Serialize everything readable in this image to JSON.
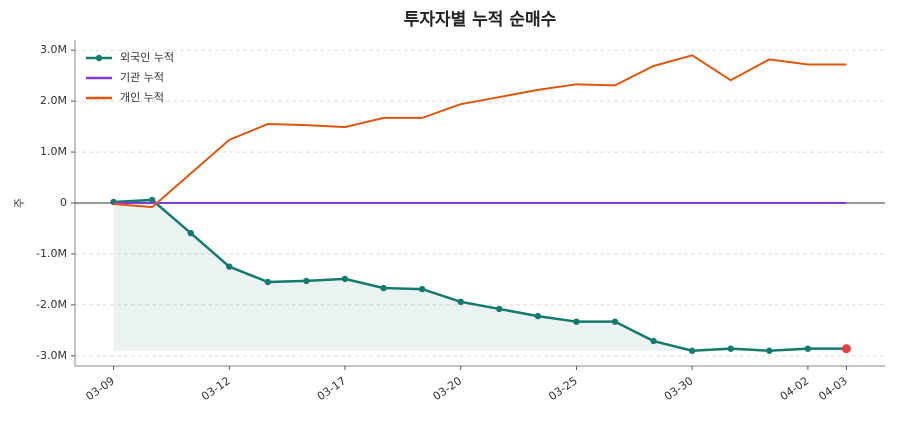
{
  "chart_data": {
    "type": "line",
    "title": "투자자별 누적 순매수",
    "ylabel": "주",
    "categories": [
      "03-09",
      null,
      null,
      "03-12",
      null,
      null,
      "03-17",
      null,
      null,
      "03-20",
      null,
      null,
      "03-25",
      null,
      null,
      "03-30",
      null,
      null,
      "04-02",
      "04-03"
    ],
    "series": [
      {
        "name": "외국인 누적",
        "color": "#147a6e",
        "markers": true,
        "fill": true,
        "last_point_color": "#e5413e",
        "values": [
          20000,
          60000,
          -590000,
          -1250000,
          -1550000,
          -1530000,
          -1490000,
          -1670000,
          -1690000,
          -1940000,
          -2080000,
          -2220000,
          -2330000,
          -2330000,
          -2710000,
          -2900000,
          -2860000,
          -2900000,
          -2860000,
          -2860000
        ]
      },
      {
        "name": "기관 누적",
        "color": "#7e3fd9",
        "markers": false,
        "values": [
          0,
          0,
          0,
          0,
          0,
          0,
          0,
          0,
          0,
          0,
          0,
          0,
          0,
          0,
          0,
          0,
          0,
          0,
          0,
          0
        ]
      },
      {
        "name": "개인 누적",
        "color": "#e0560f",
        "markers": false,
        "values": [
          -20000,
          -80000,
          580000,
          1240000,
          1550000,
          1530000,
          1490000,
          1670000,
          1670000,
          1940000,
          2080000,
          2220000,
          2330000,
          2310000,
          2690000,
          2900000,
          2410000,
          2820000,
          2720000,
          2720000
        ]
      }
    ],
    "ylim": [
      -3200000,
      3200000
    ],
    "yticks": [
      {
        "value": 3000000,
        "label": "3.0M"
      },
      {
        "value": 2000000,
        "label": "2.0M"
      },
      {
        "value": 1000000,
        "label": "1.0M"
      },
      0,
      {
        "value": -1000000,
        "label": "-1.0M"
      },
      {
        "value": -2000000,
        "label": "-2.0M"
      },
      {
        "value": -3000000,
        "label": "-3.0M"
      }
    ],
    "grid": true,
    "zero_line": true,
    "legend": "upper-left"
  }
}
